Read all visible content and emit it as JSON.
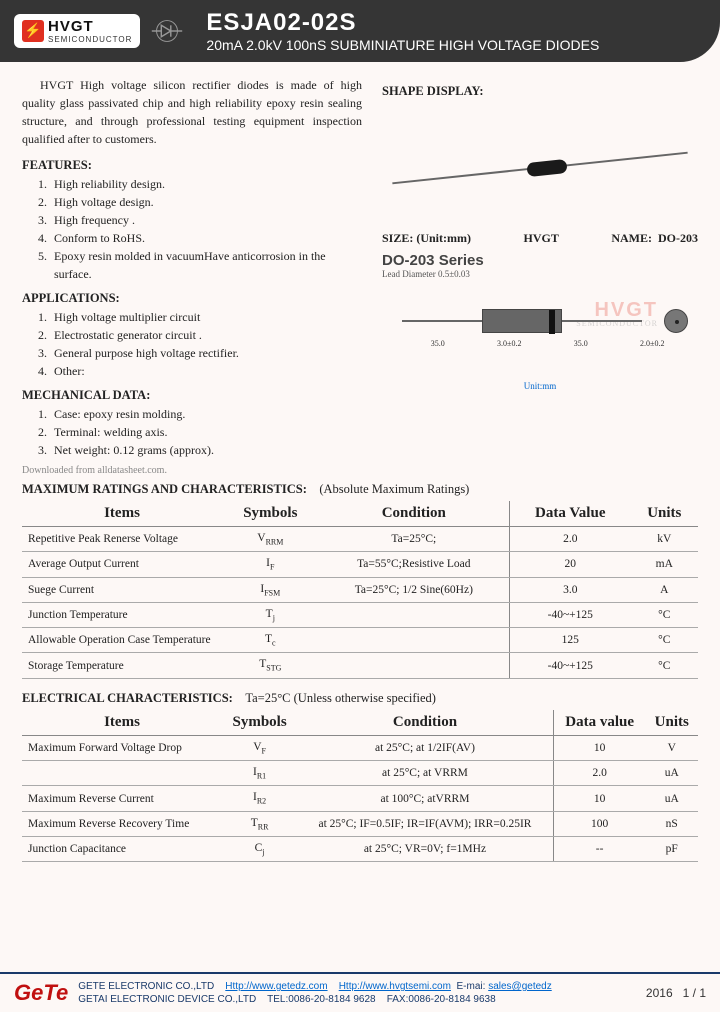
{
  "header": {
    "logo_brand": "HVGT",
    "logo_sub": "SEMICONDUCTOR",
    "part_number": "ESJA02-02S",
    "subtitle": "20mA 2.0kV 100nS SUBMINIATURE HIGH VOLTAGE DIODES"
  },
  "intro": "HVGT High voltage silicon rectifier diodes is made of high quality glass passivated chip and high reliability epoxy resin sealing structure, and through professional testing equipment inspection qualified after to customers.",
  "features_title": "FEATURES:",
  "features": [
    "High reliability design.",
    "High voltage design.",
    "High frequency .",
    "Conform to RoHS.",
    "Epoxy resin molded in vacuumHave anticorrosion in the surface."
  ],
  "applications_title": "APPLICATIONS:",
  "applications": [
    "High voltage multiplier circuit",
    "Electrostatic generator circuit .",
    "General purpose high voltage rectifier.",
    "Other:"
  ],
  "mechanical_title": "MECHANICAL DATA:",
  "mechanical": [
    "Case: epoxy resin molding.",
    "Terminal: welding axis.",
    "Net weight: 0.12 grams (approx)."
  ],
  "shape_title": "SHAPE DISPLAY:",
  "size_label": "SIZE: (Unit:mm)",
  "size_brand": "HVGT",
  "size_name_label": "NAME:",
  "size_name": "DO-203",
  "do_series": "DO-203 Series",
  "lead_diameter": "Lead Diameter 0.5±0.03",
  "dims": {
    "lead_len": "35.0",
    "body_len": "3.0±0.2",
    "lead_len2": "35.0",
    "body_dia": "2.0±0.2"
  },
  "unit_mm": "Unit:mm",
  "watermark": "HVGT",
  "watermark_sub": "SEMICONDUCTOR",
  "download_note": "Downloaded from alldatasheet.com.",
  "max_title": "MAXIMUM RATINGS AND CHARACTERISTICS:",
  "max_cond": "(Absolute Maximum Ratings)",
  "headers": {
    "items": "Items",
    "symbols": "Symbols",
    "condition": "Condition",
    "datavalue": "Data Value",
    "units": "Units",
    "datavalue2": "Data value"
  },
  "max_rows": [
    {
      "item": "Repetitive Peak Renerse Voltage",
      "sym": "V",
      "sub": "RRM",
      "cond": "Ta=25°C;",
      "val": "2.0",
      "unit": "kV"
    },
    {
      "item": "Average Output Current",
      "sym": "I",
      "sub": "F",
      "cond": "Ta=55°C;Resistive Load",
      "val": "20",
      "unit": "mA"
    },
    {
      "item": "Suege Current",
      "sym": "I",
      "sub": "FSM",
      "cond": "Ta=25°C; 1/2 Sine(60Hz)",
      "val": "3.0",
      "unit": "A"
    },
    {
      "item": "Junction Temperature",
      "sym": "T",
      "sub": "j",
      "cond": "",
      "val": "-40~+125",
      "unit": "°C"
    },
    {
      "item": "Allowable Operation Case Temperature",
      "sym": "T",
      "sub": "c",
      "cond": "",
      "val": "125",
      "unit": "°C"
    },
    {
      "item": "Storage Temperature",
      "sym": "T",
      "sub": "STG",
      "cond": "",
      "val": "-40~+125",
      "unit": "°C"
    }
  ],
  "elec_title": "ELECTRICAL CHARACTERISTICS:",
  "elec_cond": "Ta=25°C    (Unless otherwise specified)",
  "elec_rows": [
    {
      "item": "Maximum Forward Voltage Drop",
      "sym": "V",
      "sub": "F",
      "cond": "at 25°C; at 1/2IF(AV)",
      "val": "10",
      "unit": "V"
    },
    {
      "item": "",
      "sym": "I",
      "sub": "R1",
      "cond": "at 25°C; at VRRM",
      "val": "2.0",
      "unit": "uA"
    },
    {
      "item": "Maximum Reverse Current",
      "sym": "I",
      "sub": "R2",
      "cond": "at 100°C; atVRRM",
      "val": "10",
      "unit": "uA"
    },
    {
      "item": "Maximum Reverse Recovery Time",
      "sym": "T",
      "sub": "RR",
      "cond": "at 25°C; IF=0.5IF; IR=IF(AVM); IRR=0.25IR",
      "val": "100",
      "unit": "nS"
    },
    {
      "item": "Junction Capacitance",
      "sym": "C",
      "sub": "j",
      "cond": "at 25°C; VR=0V; f=1MHz",
      "val": "--",
      "unit": "pF"
    }
  ],
  "footer": {
    "company1": "GETE ELECTRONIC CO.,LTD",
    "url1": "Http://www.getedz.com",
    "url2": "Http://www.hvgtsemi.com",
    "email_label": "E-mai:",
    "email": "sales@getedz",
    "company2": "GETAI ELECTRONIC DEVICE CO.,LTD",
    "tel": "TEL:0086-20-8184 9628",
    "fax": "FAX:0086-20-8184 9638",
    "year": "2016",
    "page": "1 / 1",
    "gete": "GeTe"
  }
}
